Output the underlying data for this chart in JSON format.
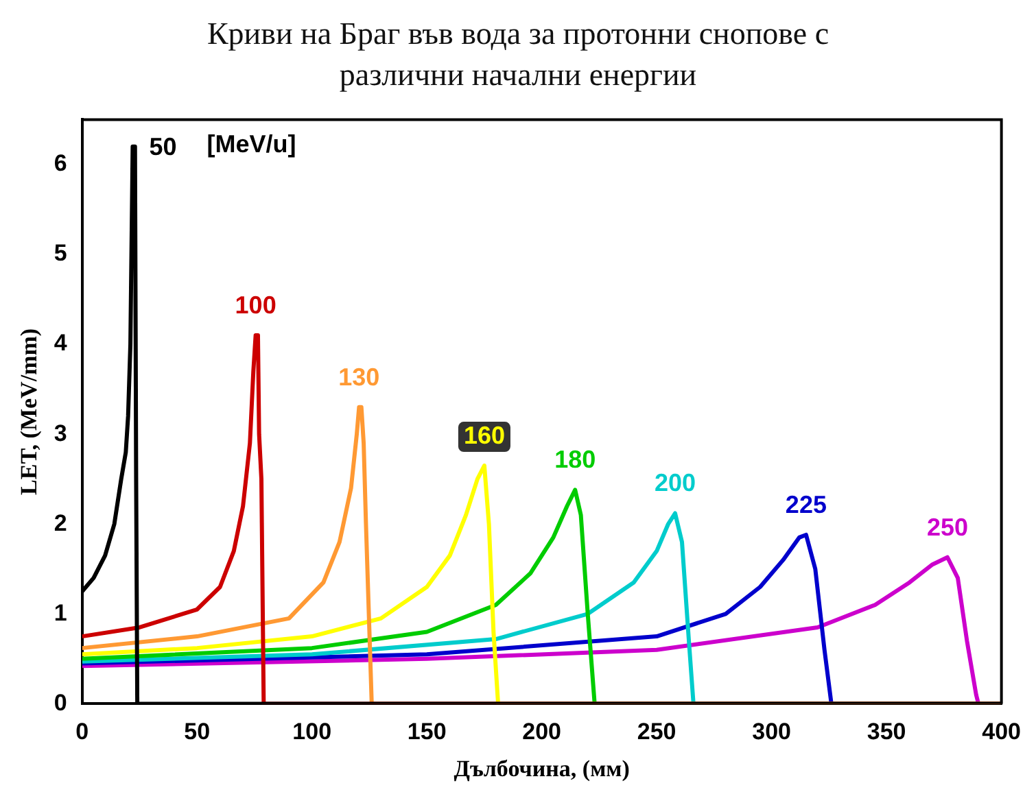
{
  "chart_data": {
    "type": "line",
    "title": "Криви на Браг във вода за протонни снопове с различни начални енергии",
    "xlabel": "Дълбочина, (мм)",
    "ylabel": "LET, (MeV/mm)",
    "xlim": [
      0,
      400
    ],
    "xticks": [
      0,
      50,
      100,
      150,
      200,
      250,
      300,
      350,
      400
    ],
    "ylim": [
      0,
      6.5
    ],
    "yticks": [
      0,
      1,
      2,
      3,
      4,
      5,
      6
    ],
    "grid": false,
    "legend": false,
    "marker": "none",
    "annotations": [
      "[MeV/u]"
    ],
    "series": [
      {
        "name": "50",
        "color": "#000000",
        "x": [
          0,
          5,
          10,
          14,
          17,
          19,
          20,
          21,
          22,
          23,
          23.5,
          24,
          400
        ],
        "values": [
          1.25,
          1.4,
          1.65,
          2,
          2.5,
          2.8,
          3.2,
          4,
          6.2,
          6.2,
          2.5,
          0,
          0
        ]
      },
      {
        "name": "100",
        "color": "#cc0000",
        "x": [
          0,
          25,
          50,
          60,
          66,
          70,
          73,
          74.5,
          75.5,
          76.5,
          77,
          78,
          79,
          400
        ],
        "values": [
          0.75,
          0.85,
          1.05,
          1.3,
          1.7,
          2.2,
          2.9,
          3.7,
          4.1,
          4.1,
          3,
          2.5,
          0,
          0
        ]
      },
      {
        "name": "130",
        "color": "#ff9933",
        "x": [
          0,
          50,
          90,
          105,
          112,
          117,
          119.5,
          120.5,
          121.5,
          122.5,
          123.5,
          125,
          126,
          400
        ],
        "values": [
          0.62,
          0.75,
          0.95,
          1.35,
          1.8,
          2.4,
          3,
          3.3,
          3.3,
          2.9,
          2,
          0.8,
          0,
          0
        ]
      },
      {
        "name": "160",
        "color": "#ffff00",
        "x": [
          0,
          50,
          100,
          130,
          150,
          160,
          167,
          172,
          175,
          177,
          179,
          181,
          400
        ],
        "values": [
          0.55,
          0.62,
          0.75,
          0.95,
          1.3,
          1.65,
          2.1,
          2.5,
          2.65,
          2,
          0.8,
          0,
          0
        ]
      },
      {
        "name": "180",
        "color": "#00cc00",
        "x": [
          0,
          100,
          150,
          180,
          195,
          205,
          211,
          214.5,
          217,
          220,
          223,
          400
        ],
        "values": [
          0.5,
          0.62,
          0.8,
          1.1,
          1.45,
          1.85,
          2.2,
          2.38,
          2.1,
          1,
          0,
          0
        ]
      },
      {
        "name": "200",
        "color": "#00cccc",
        "x": [
          0,
          100,
          180,
          220,
          240,
          250,
          255,
          258,
          261,
          264,
          266,
          400
        ],
        "values": [
          0.47,
          0.55,
          0.72,
          1,
          1.35,
          1.7,
          2,
          2.12,
          1.8,
          0.7,
          0,
          0
        ]
      },
      {
        "name": "225",
        "color": "#0000cc",
        "x": [
          0,
          150,
          250,
          280,
          295,
          305,
          312,
          315,
          319,
          323,
          326,
          400
        ],
        "values": [
          0.45,
          0.55,
          0.75,
          1,
          1.3,
          1.6,
          1.85,
          1.88,
          1.5,
          0.6,
          0,
          0
        ]
      },
      {
        "name": "250",
        "color": "#cc00cc",
        "x": [
          0,
          150,
          250,
          320,
          345,
          360,
          370,
          376.5,
          381,
          385,
          389,
          390,
          400
        ],
        "values": [
          0.42,
          0.5,
          0.6,
          0.85,
          1.1,
          1.35,
          1.55,
          1.63,
          1.4,
          0.7,
          0.1,
          0,
          0
        ]
      }
    ]
  }
}
